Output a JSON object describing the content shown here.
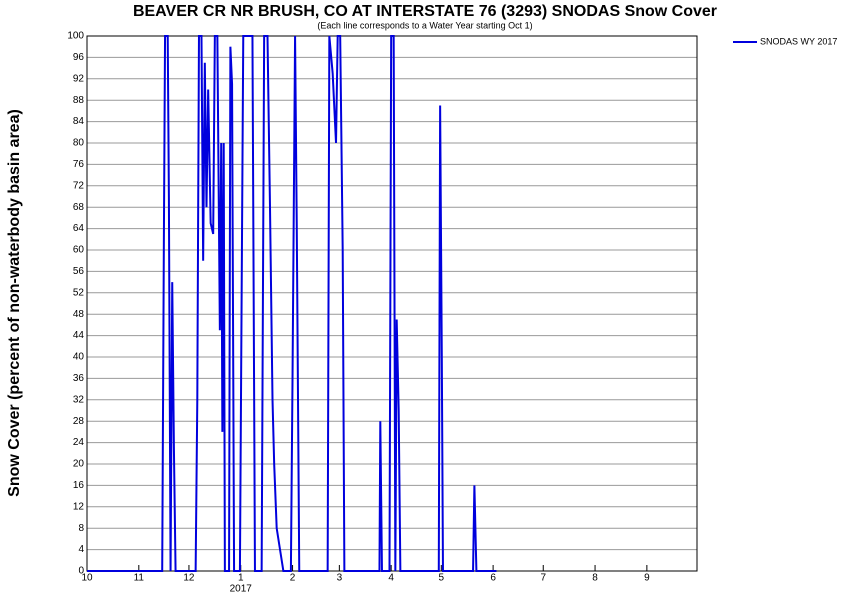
{
  "chart_data": {
    "type": "line",
    "title": "BEAVER CR NR BRUSH, CO AT INTERSTATE 76 (3293) SNODAS Snow Cover",
    "subtitle": "(Each line corresponds to a Water Year starting Oct 1)",
    "y_label": "Snow Cover (percent of non-waterbody basin area)",
    "x": [
      0,
      45,
      46,
      46.7,
      48.3,
      49,
      50,
      51,
      52,
      53,
      65,
      66,
      67,
      68.5,
      69.5,
      70.5,
      71.5,
      72.5,
      74,
      75.5,
      76.5,
      78,
      79.5,
      80.3,
      81,
      81.8,
      82.5,
      85,
      85.8,
      86.8,
      88,
      91.5,
      93.5,
      99,
      100.5,
      104.5,
      106,
      108,
      109.5,
      111,
      112,
      113.5,
      115.5,
      117.5,
      122,
      123,
      124.5,
      125.5,
      127,
      144,
      145,
      147,
      149,
      150,
      151.5,
      153,
      154,
      175,
      175.5,
      176.5,
      181,
      182,
      183.5,
      184.5,
      185.3,
      186.5,
      187.5,
      210.5,
      211.3,
      212.3,
      213,
      231,
      231.8,
      233,
      245
    ],
    "series": [
      {
        "name": "SNODAS WY 2017",
        "color": "#0000dd",
        "values": [
          0,
          0,
          62,
          100,
          100,
          70,
          0,
          54,
          23,
          0,
          0,
          32,
          100,
          100,
          58,
          95,
          68,
          90,
          65,
          63,
          100,
          100,
          45,
          80,
          26,
          80,
          0,
          0,
          98,
          91,
          0,
          0,
          100,
          100,
          0,
          0,
          100,
          100,
          68,
          32,
          20,
          8,
          4,
          0,
          0,
          37,
          100,
          65,
          0,
          0,
          100,
          93,
          80,
          100,
          100,
          60,
          0,
          0,
          28,
          0,
          0,
          100,
          100,
          0,
          47,
          30,
          0,
          0,
          87,
          40,
          0,
          0,
          16,
          0,
          0
        ]
      }
    ],
    "xlim": [
      0,
      365
    ],
    "xticks": [
      {
        "value": 0,
        "label": "10"
      },
      {
        "value": 31,
        "label": "11"
      },
      {
        "value": 61,
        "label": "12"
      },
      {
        "value": 92,
        "label": "1",
        "sublabel": "2017"
      },
      {
        "value": 123,
        "label": "2"
      },
      {
        "value": 151,
        "label": "3"
      },
      {
        "value": 182,
        "label": "4"
      },
      {
        "value": 212,
        "label": "5"
      },
      {
        "value": 243,
        "label": "6"
      },
      {
        "value": 273,
        "label": "7"
      },
      {
        "value": 304,
        "label": "8"
      },
      {
        "value": 335,
        "label": "9"
      }
    ],
    "ylim": [
      0,
      100
    ],
    "yticks": [
      0,
      4,
      8,
      12,
      16,
      20,
      24,
      28,
      32,
      36,
      40,
      44,
      48,
      52,
      56,
      60,
      64,
      68,
      72,
      76,
      80,
      84,
      88,
      92,
      96,
      100
    ],
    "grid": true,
    "legend": "top-right"
  }
}
